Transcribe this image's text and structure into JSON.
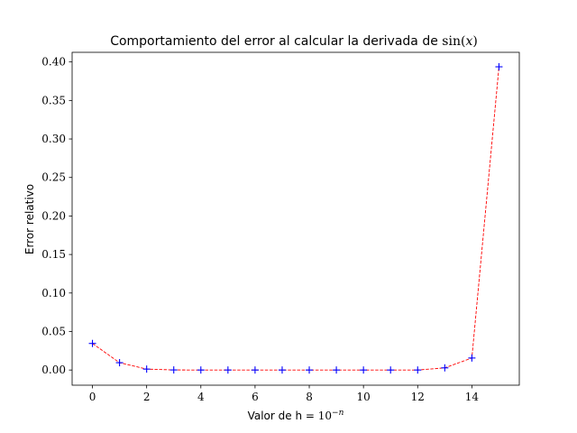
{
  "chart_data": {
    "type": "line",
    "title": {
      "text": "Comportamiento del error al calcular la derivada de ",
      "math_fn": "sin",
      "math_open": "(",
      "math_var": "x",
      "math_close": ")"
    },
    "xlabel": {
      "text": "Valor de h = ",
      "base": "10",
      "exponent": "−n"
    },
    "ylabel": "Error relativo",
    "xlim": [
      -0.75,
      15.75
    ],
    "ylim": [
      -0.0197,
      0.4125
    ],
    "xticks": [
      0,
      2,
      4,
      6,
      8,
      10,
      12,
      14
    ],
    "xtick_labels": [
      "0",
      "2",
      "4",
      "6",
      "8",
      "10",
      "12",
      "14"
    ],
    "yticks": [
      0.0,
      0.05,
      0.1,
      0.15,
      0.2,
      0.25,
      0.3,
      0.35,
      0.4
    ],
    "ytick_labels": [
      "0.00",
      "0.05",
      "0.10",
      "0.15",
      "0.20",
      "0.25",
      "0.30",
      "0.35",
      "0.40"
    ],
    "grid": false,
    "series": [
      {
        "x": [
          0,
          1,
          2,
          3,
          4,
          5,
          6,
          7,
          8,
          9,
          10,
          11,
          12,
          13,
          14,
          15
        ],
        "y": [
          0.0345,
          0.0095,
          0.0012,
          0.0001,
          0.0,
          0.0,
          0.0,
          0.0,
          0.0,
          0.0,
          0.0,
          0.0,
          0.0,
          0.0028,
          0.0156,
          0.3937
        ],
        "line_color": "#ff0000",
        "line_style": "dashed",
        "marker": "plus",
        "marker_color": "#0000ff"
      }
    ]
  }
}
